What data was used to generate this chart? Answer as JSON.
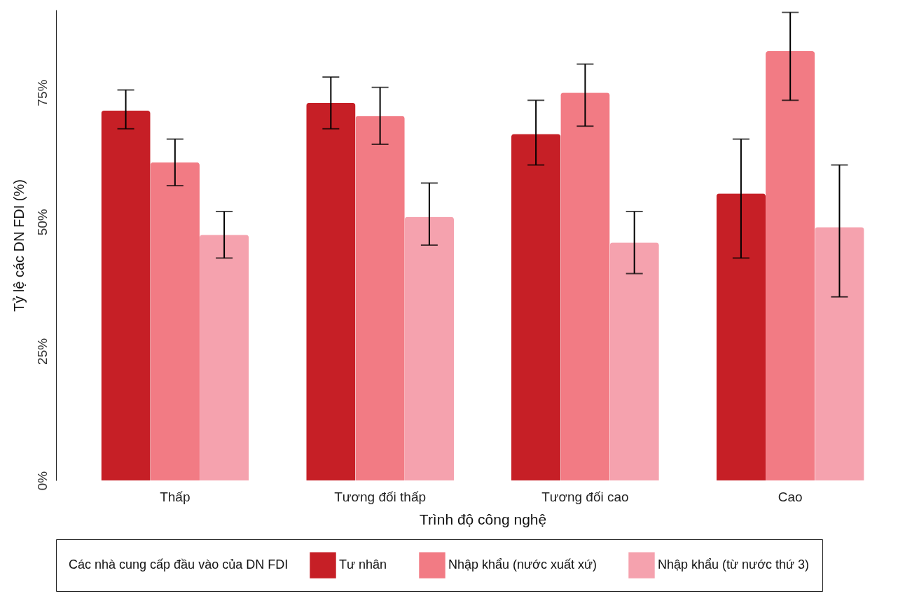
{
  "chart_data": {
    "type": "bar",
    "xlabel": "Trình độ công nghệ",
    "ylabel": "Tỷ lệ các DN FDI (%)",
    "legend_title": "Các nhà cung cấp đầu vào của DN FDI",
    "categories": [
      "Thấp",
      "Tương đối thấp",
      "Tương đối cao",
      "Cao"
    ],
    "series": [
      {
        "name": "Tư nhân",
        "color": "#c61f26",
        "values": [
          71.5,
          73,
          67,
          55.5
        ],
        "errors": [
          [
            68,
            75.5
          ],
          [
            68,
            78
          ],
          [
            61,
            73.5
          ],
          [
            43,
            66
          ]
        ]
      },
      {
        "name": "Nhập khẩu (nước xuất xứ)",
        "color": "#f27b84",
        "values": [
          61.5,
          70.5,
          75,
          83
        ],
        "errors": [
          [
            57,
            66
          ],
          [
            65,
            76
          ],
          [
            68.5,
            80.5
          ],
          [
            73.5,
            90.5
          ]
        ]
      },
      {
        "name": "Nhập khẩu (từ nước thứ 3)",
        "color": "#f5a2ae",
        "values": [
          47.5,
          51,
          46,
          49
        ],
        "errors": [
          [
            43,
            52
          ],
          [
            45.5,
            57.5
          ],
          [
            40,
            52
          ],
          [
            35.5,
            61
          ]
        ]
      }
    ],
    "ylim": [
      0,
      91
    ],
    "yticks": [
      {
        "value": 0,
        "label": "0%"
      },
      {
        "value": 25,
        "label": "25%"
      },
      {
        "value": 50,
        "label": "50%"
      },
      {
        "value": 75,
        "label": "75%"
      }
    ],
    "grid": false,
    "legend": "bottom"
  }
}
